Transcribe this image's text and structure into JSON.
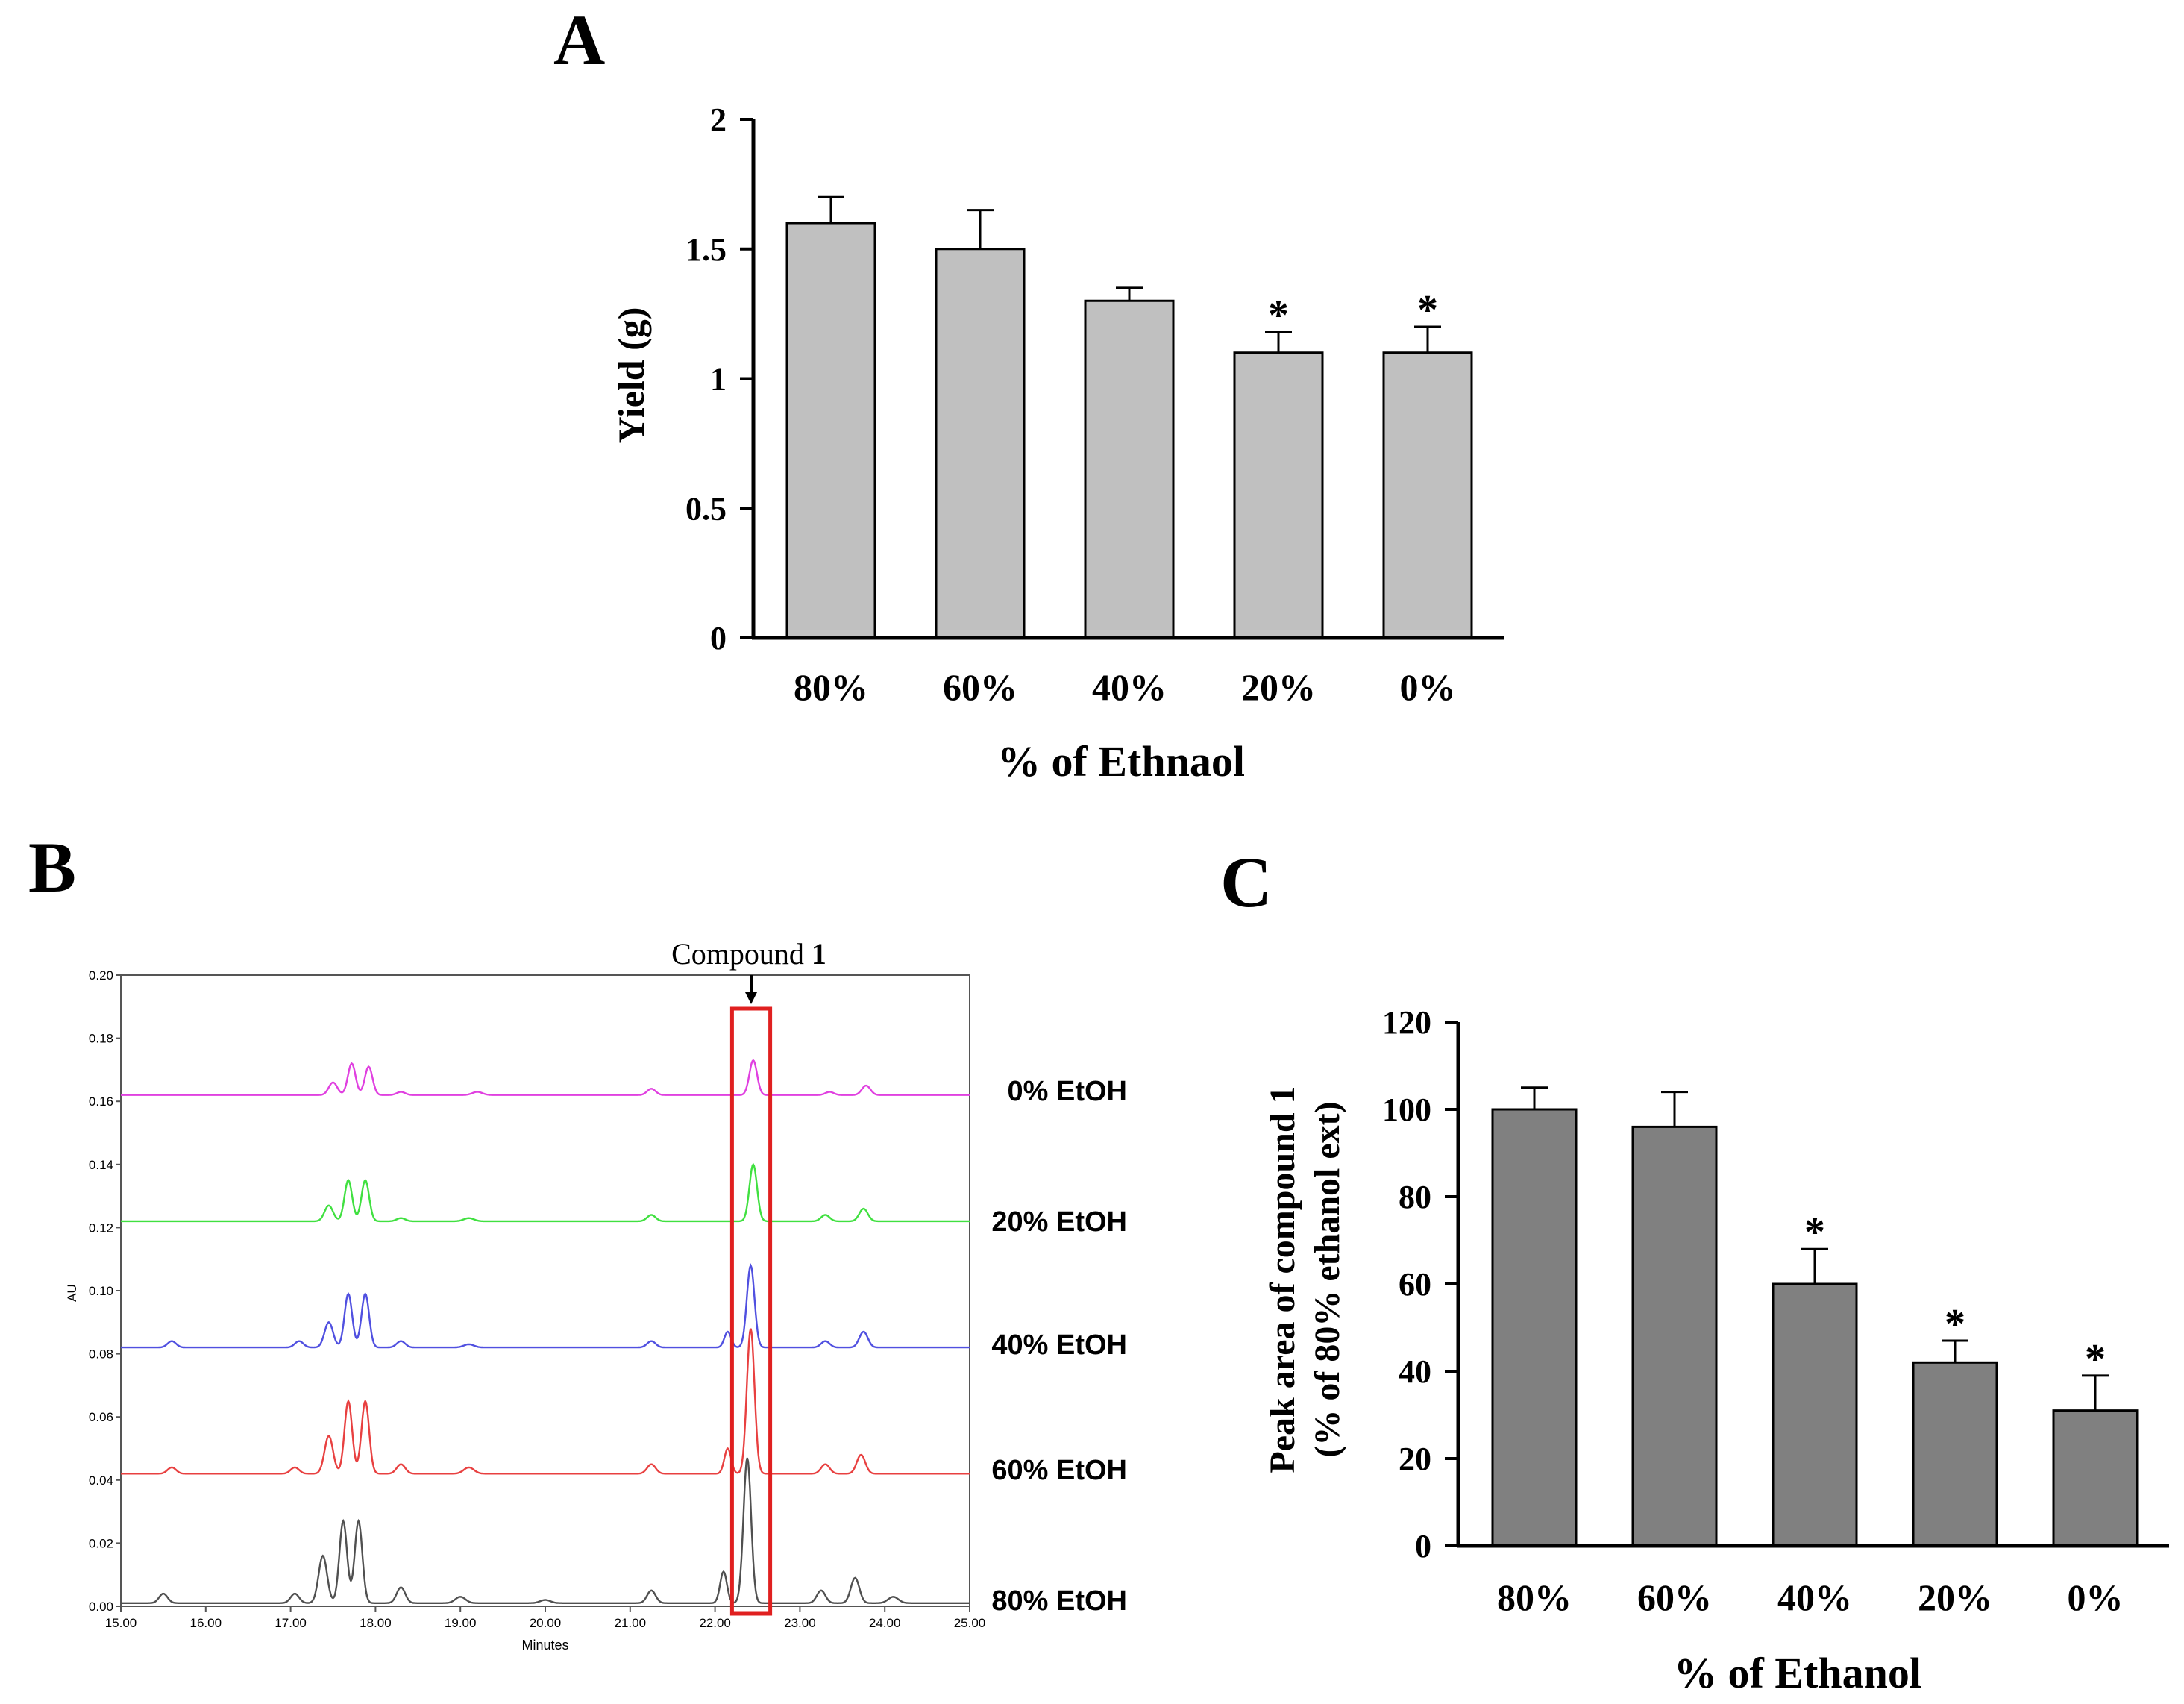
{
  "panels": {
    "a": {
      "label": "A"
    },
    "b": {
      "label": "B"
    },
    "c": {
      "label": "C"
    }
  },
  "colors": {
    "bar_a": "#c0c0c0",
    "bar_c": "#808080",
    "axis": "#000000",
    "highlight_box": "#e02020"
  },
  "chart_data": [
    {
      "id": "panel-a",
      "type": "bar",
      "title": "",
      "categories": [
        "80%",
        "60%",
        "40%",
        "20%",
        "0%"
      ],
      "values": [
        1.6,
        1.5,
        1.3,
        1.1,
        1.1
      ],
      "errors": [
        0.1,
        0.15,
        0.05,
        0.08,
        0.1
      ],
      "significance": [
        "",
        "",
        "",
        "*",
        "*"
      ],
      "xlabel": "% of Ethnaol",
      "ylabel": "Yield (g)",
      "ylim": [
        0,
        2
      ],
      "yticks": [
        0,
        0.5,
        1,
        1.5,
        2
      ],
      "ytick_labels": [
        "0",
        "0.5",
        "1",
        "1.5",
        "2"
      ]
    },
    {
      "id": "panel-b",
      "type": "line",
      "title": "Compound 1",
      "title_parts": [
        "Compound ",
        "1"
      ],
      "xlabel": "Minutes",
      "ylabel": "AU",
      "xlim": [
        15,
        25
      ],
      "ylim": [
        0,
        0.2
      ],
      "xticks": [
        15,
        16,
        17,
        18,
        19,
        20,
        21,
        22,
        23,
        24,
        25
      ],
      "xtick_labels": [
        "15.00",
        "16.00",
        "17.00",
        "18.00",
        "19.00",
        "20.00",
        "21.00",
        "22.00",
        "23.00",
        "24.00",
        "25.00"
      ],
      "yticks": [
        0,
        0.02,
        0.04,
        0.06,
        0.08,
        0.1,
        0.12,
        0.14,
        0.16,
        0.18,
        0.2
      ],
      "ytick_labels": [
        "0.00",
        "0.02",
        "0.04",
        "0.06",
        "0.08",
        "0.10",
        "0.12",
        "0.14",
        "0.16",
        "0.18",
        "0.20"
      ],
      "highlight_range": [
        22.2,
        22.65
      ],
      "series": [
        {
          "name": "80% EtOH",
          "color": "#505050",
          "baseline": 0.001,
          "drift": 0,
          "peaks": [
            [
              15.5,
              0.003,
              0.05
            ],
            [
              17.05,
              0.003,
              0.05
            ],
            [
              17.38,
              0.015,
              0.05
            ],
            [
              17.62,
              0.026,
              0.045
            ],
            [
              17.8,
              0.026,
              0.045
            ],
            [
              18.3,
              0.005,
              0.05
            ],
            [
              19.0,
              0.002,
              0.06
            ],
            [
              20.0,
              0.001,
              0.06
            ],
            [
              21.25,
              0.004,
              0.05
            ],
            [
              22.1,
              0.01,
              0.04
            ],
            [
              22.38,
              0.046,
              0.045
            ],
            [
              23.25,
              0.004,
              0.05
            ],
            [
              23.65,
              0.008,
              0.05
            ],
            [
              24.1,
              0.002,
              0.06
            ]
          ]
        },
        {
          "name": "60% EtOH",
          "color": "#e84040",
          "baseline": 0.042,
          "drift": 0,
          "peaks": [
            [
              15.6,
              0.002,
              0.05
            ],
            [
              17.05,
              0.002,
              0.05
            ],
            [
              17.45,
              0.012,
              0.05
            ],
            [
              17.68,
              0.023,
              0.045
            ],
            [
              17.88,
              0.023,
              0.045
            ],
            [
              18.3,
              0.003,
              0.05
            ],
            [
              19.1,
              0.002,
              0.06
            ],
            [
              21.25,
              0.003,
              0.05
            ],
            [
              22.15,
              0.008,
              0.04
            ],
            [
              22.42,
              0.046,
              0.045
            ],
            [
              23.3,
              0.003,
              0.05
            ],
            [
              23.72,
              0.006,
              0.05
            ]
          ]
        },
        {
          "name": "40% EtOH",
          "color": "#5050e0",
          "baseline": 0.082,
          "drift": 0,
          "peaks": [
            [
              15.6,
              0.002,
              0.05
            ],
            [
              17.1,
              0.002,
              0.05
            ],
            [
              17.45,
              0.008,
              0.05
            ],
            [
              17.68,
              0.017,
              0.045
            ],
            [
              17.88,
              0.017,
              0.045
            ],
            [
              18.3,
              0.002,
              0.05
            ],
            [
              19.1,
              0.001,
              0.06
            ],
            [
              21.25,
              0.002,
              0.05
            ],
            [
              22.15,
              0.005,
              0.04
            ],
            [
              22.42,
              0.026,
              0.045
            ],
            [
              23.3,
              0.002,
              0.05
            ],
            [
              23.75,
              0.005,
              0.05
            ]
          ]
        },
        {
          "name": "20% EtOH",
          "color": "#40e040",
          "baseline": 0.122,
          "drift": 0,
          "peaks": [
            [
              17.45,
              0.005,
              0.05
            ],
            [
              17.68,
              0.013,
              0.045
            ],
            [
              17.88,
              0.013,
              0.045
            ],
            [
              18.3,
              0.001,
              0.05
            ],
            [
              19.1,
              0.001,
              0.06
            ],
            [
              21.25,
              0.002,
              0.05
            ],
            [
              22.45,
              0.018,
              0.045
            ],
            [
              23.3,
              0.002,
              0.05
            ],
            [
              23.75,
              0.004,
              0.05
            ]
          ]
        },
        {
          "name": "0% EtOH",
          "color": "#e040e0",
          "baseline": 0.162,
          "drift": 0,
          "peaks": [
            [
              17.5,
              0.004,
              0.05
            ],
            [
              17.72,
              0.01,
              0.045
            ],
            [
              17.92,
              0.009,
              0.045
            ],
            [
              18.3,
              0.001,
              0.05
            ],
            [
              19.2,
              0.001,
              0.06
            ],
            [
              21.25,
              0.002,
              0.05
            ],
            [
              22.45,
              0.011,
              0.045
            ],
            [
              23.35,
              0.001,
              0.05
            ],
            [
              23.78,
              0.003,
              0.05
            ]
          ]
        }
      ],
      "series_labels_top_to_bottom": [
        "0% EtOH",
        "20% EtOH",
        "40% EtOH",
        "60% EtOH",
        "80% EtOH"
      ]
    },
    {
      "id": "panel-c",
      "type": "bar",
      "title": "",
      "categories": [
        "80%",
        "60%",
        "40%",
        "20%",
        "0%"
      ],
      "values": [
        100,
        96,
        60,
        42,
        31
      ],
      "errors": [
        5,
        8,
        8,
        5,
        8
      ],
      "significance": [
        "",
        "",
        "*",
        "*",
        "*"
      ],
      "xlabel": "% of Ethanol",
      "ylabel": "Peak area of compound 1",
      "ylabel2": "(% of 80% ethanol ext)",
      "ylim": [
        0,
        120
      ],
      "yticks": [
        0,
        20,
        40,
        60,
        80,
        100,
        120
      ],
      "ytick_labels": [
        "0",
        "20",
        "40",
        "60",
        "80",
        "100",
        "120"
      ]
    }
  ]
}
